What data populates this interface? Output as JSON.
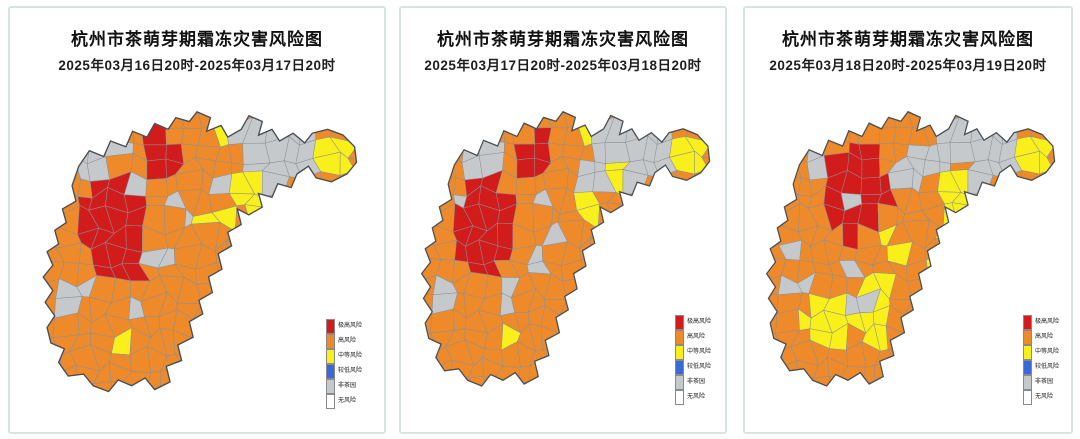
{
  "page": {
    "background": "#ffffff",
    "card_border": "#d7e4df"
  },
  "palette": {
    "extreme": "#D21B1B",
    "high": "#EE8A2A",
    "medium": "#F8EF1B",
    "low": "#3A68D8",
    "non_tea": "#C6C9CC",
    "none": "#FFFFFF",
    "inner_boundary": "#8a9096",
    "outer_boundary": "#474e54"
  },
  "legend": {
    "items": [
      {
        "label": "极高风险",
        "key": "extreme"
      },
      {
        "label": "高风险",
        "key": "high"
      },
      {
        "label": "中等风险",
        "key": "medium"
      },
      {
        "label": "较低风险",
        "key": "low"
      },
      {
        "label": "非茶园",
        "key": "non_tea"
      },
      {
        "label": "无风险",
        "key": "none"
      }
    ]
  },
  "chart_data": {
    "type": "choropleth",
    "region": "杭州市",
    "default_risk": "high",
    "maps": [
      {
        "title": "杭州市茶萌芽期霜冻灾害风险图",
        "subtitle": "2025年03月16日20时-2025年03月17日20时",
        "zones": [
          [
            "non_tea",
            75,
            54,
            21,
            17
          ],
          [
            "non_tea",
            100,
            42,
            11,
            9
          ],
          [
            "non_tea",
            250,
            46,
            62,
            40
          ],
          [
            "non_tea",
            210,
            80,
            20,
            15
          ],
          [
            "non_tea",
            175,
            122,
            13,
            11
          ],
          [
            "non_tea",
            124,
            150,
            11,
            10
          ],
          [
            "non_tea",
            52,
            196,
            16,
            13
          ],
          [
            "non_tea",
            112,
            202,
            14,
            12
          ],
          [
            "non_tea",
            160,
            92,
            9,
            8
          ],
          [
            "non_tea",
            142,
            162,
            12,
            10
          ],
          [
            "high",
            196,
            52,
            16,
            22
          ],
          [
            "high",
            222,
            58,
            11,
            9
          ],
          [
            "high",
            250,
            74,
            10,
            8
          ],
          [
            "medium",
            205,
            32,
            11,
            9
          ],
          [
            "medium",
            231,
            82,
            17,
            20
          ],
          [
            "medium",
            250,
            105,
            12,
            11
          ],
          [
            "medium",
            322,
            50,
            28,
            26
          ],
          [
            "medium",
            198,
            113,
            14,
            12
          ],
          [
            "medium",
            110,
            236,
            13,
            11
          ],
          [
            "extreme",
            143,
            52,
            17,
            27
          ],
          [
            "extreme",
            88,
            118,
            33,
            42
          ],
          [
            "extreme",
            103,
            158,
            27,
            25
          ],
          [
            "non_tea",
            112,
            86,
            10,
            8
          ]
        ]
      },
      {
        "title": "杭州市茶萌芽期霜冻灾害风险图",
        "subtitle": "2025年03月17日20时-2025年03月18日20时",
        "zones": [
          [
            "non_tea",
            86,
            54,
            19,
            15
          ],
          [
            "non_tea",
            250,
            46,
            62,
            40
          ],
          [
            "non_tea",
            212,
            80,
            20,
            15
          ],
          [
            "non_tea",
            162,
            95,
            11,
            9
          ],
          [
            "non_tea",
            52,
            197,
            16,
            13
          ],
          [
            "non_tea",
            112,
            200,
            14,
            12
          ],
          [
            "non_tea",
            145,
            162,
            13,
            11
          ],
          [
            "non_tea",
            172,
            132,
            11,
            9
          ],
          [
            "high",
            196,
            50,
            15,
            20
          ],
          [
            "high",
            252,
            72,
            10,
            8
          ],
          [
            "medium",
            211,
            34,
            11,
            9
          ],
          [
            "medium",
            237,
            76,
            12,
            15
          ],
          [
            "medium",
            260,
            113,
            9,
            9
          ],
          [
            "medium",
            205,
            113,
            15,
            19
          ],
          [
            "medium",
            322,
            50,
            28,
            26
          ],
          [
            "medium",
            119,
            239,
            14,
            12
          ],
          [
            "extreme",
            148,
            53,
            17,
            29
          ],
          [
            "extreme",
            89,
            124,
            34,
            56
          ],
          [
            "non_tea",
            64,
            100,
            10,
            9
          ]
        ]
      },
      {
        "title": "杭州市茶萌芽期霜冻灾害风险图",
        "subtitle": "2025年03月18日20时-2025年03月19日20时",
        "zones": [
          [
            "non_tea",
            80,
            54,
            16,
            13
          ],
          [
            "non_tea",
            250,
            46,
            62,
            40
          ],
          [
            "non_tea",
            182,
            75,
            22,
            25
          ],
          [
            "non_tea",
            60,
            190,
            18,
            14
          ],
          [
            "non_tea",
            47,
            160,
            12,
            11
          ],
          [
            "non_tea",
            112,
            168,
            10,
            9
          ],
          [
            "high",
            205,
            30,
            13,
            12
          ],
          [
            "high",
            240,
            62,
            11,
            9
          ],
          [
            "medium",
            245,
            41,
            7,
            7
          ],
          [
            "medium",
            230,
            103,
            14,
            37
          ],
          [
            "medium",
            254,
            106,
            12,
            14
          ],
          [
            "medium",
            322,
            50,
            28,
            26
          ],
          [
            "medium",
            89,
            228,
            31,
            22
          ],
          [
            "medium",
            144,
            208,
            17,
            39
          ],
          [
            "medium",
            161,
            146,
            11,
            17
          ],
          [
            "medium",
            214,
            163,
            12,
            14
          ],
          [
            "non_tea",
            126,
            212,
            11,
            10
          ],
          [
            "extreme",
            125,
            90,
            32,
            50
          ],
          [
            "extreme",
            100,
            73,
            15,
            18
          ],
          [
            "non_tea",
            114,
            97,
            11,
            8
          ],
          [
            "low",
            246,
            88,
            8,
            7
          ]
        ]
      }
    ]
  }
}
